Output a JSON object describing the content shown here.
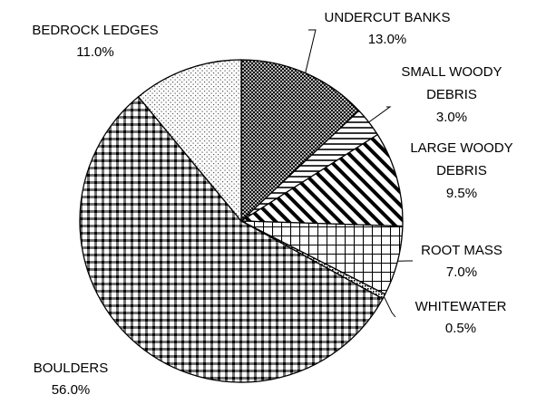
{
  "chart_data": {
    "type": "pie",
    "title": "",
    "start_angle_deg": 0,
    "direction": "clockwise",
    "legend": "none",
    "slices": [
      {
        "label": "UNDERCUT BANKS",
        "value_label": "13.0%",
        "value": 13.0,
        "pattern": "crosshatch-fine"
      },
      {
        "label": "SMALL WOODY DEBRIS",
        "value_label": "3.0%",
        "value": 3.0,
        "pattern": "horizontal-lines"
      },
      {
        "label": "LARGE WOODY DEBRIS",
        "value_label": "9.5%",
        "value": 9.5,
        "pattern": "diagonal-stripes"
      },
      {
        "label": "ROOT MASS",
        "value_label": "7.0%",
        "value": 7.0,
        "pattern": "grid"
      },
      {
        "label": "WHITEWATER",
        "value_label": "0.5%",
        "value": 0.5,
        "pattern": "dense-dots"
      },
      {
        "label": "BOULDERS",
        "value_label": "56.0%",
        "value": 56.0,
        "pattern": "checker"
      },
      {
        "label": "BEDROCK LEDGES",
        "value_label": "11.0%",
        "value": 11.0,
        "pattern": "sparse-dots"
      }
    ],
    "colors": {
      "stroke": "#000000",
      "background": "#ffffff"
    }
  }
}
